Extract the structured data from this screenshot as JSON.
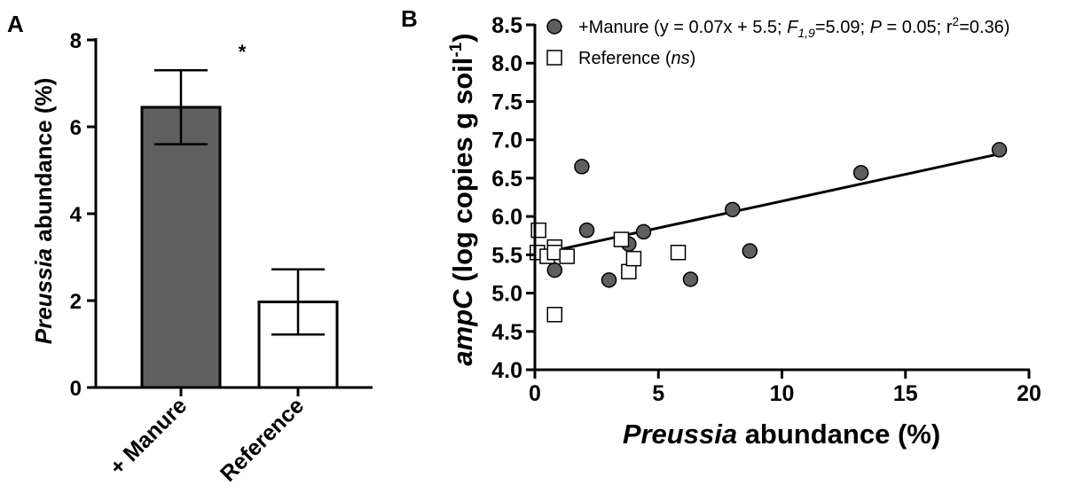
{
  "chart_data": [
    {
      "panel": "A",
      "type": "bar",
      "categories": [
        "+ Manure",
        "Reference"
      ],
      "values": [
        6.45,
        1.97
      ],
      "errors": [
        0.85,
        0.75
      ],
      "colors": [
        "#5f5f5f",
        "#ffffff"
      ],
      "ylabel_italic": "Preussia",
      "ylabel_rest": " abundance (%)",
      "ylim": [
        0,
        8
      ],
      "yticks": [
        "0",
        "2",
        "4",
        "6",
        "8"
      ],
      "annotation": "*"
    },
    {
      "panel": "B",
      "type": "scatter",
      "xlim": [
        0,
        20
      ],
      "ylim": [
        4.0,
        8.5
      ],
      "xticks": [
        "0",
        "5",
        "10",
        "15",
        "20"
      ],
      "yticks": [
        "4.0",
        "4.5",
        "5.0",
        "5.5",
        "6.0",
        "6.5",
        "7.0",
        "7.5",
        "8.0",
        "8.5"
      ],
      "xlabel_italic": "Preussia",
      "xlabel_rest": " abundance (%)",
      "ylabel_italic": "ampC",
      "ylabel_rest": " (log copies g soil",
      "ylabel_sup": "-1",
      "ylabel_close": ")",
      "legend_position": "top-right",
      "series": [
        {
          "name": "+Manure",
          "marker": "circle",
          "color": "#5f5f5f",
          "points": [
            [
              0.8,
              5.3
            ],
            [
              1.9,
              6.65
            ],
            [
              2.1,
              5.82
            ],
            [
              3.0,
              5.17
            ],
            [
              3.8,
              5.64
            ],
            [
              4.4,
              5.8
            ],
            [
              6.3,
              5.18
            ],
            [
              8.0,
              6.09
            ],
            [
              8.7,
              5.55
            ],
            [
              13.2,
              6.57
            ],
            [
              18.8,
              6.87
            ]
          ],
          "fit": {
            "slope": 0.07,
            "intercept": 5.5,
            "x_range": [
              0.5,
              18.8
            ]
          }
        },
        {
          "name": "Reference",
          "marker": "square",
          "color": "#ffffff",
          "points": [
            [
              0.15,
              5.82
            ],
            [
              0.1,
              5.53
            ],
            [
              0.5,
              5.48
            ],
            [
              0.8,
              5.6
            ],
            [
              0.8,
              5.53
            ],
            [
              1.3,
              5.48
            ],
            [
              0.8,
              4.72
            ],
            [
              3.5,
              5.7
            ],
            [
              3.8,
              5.28
            ],
            [
              4.0,
              5.45
            ],
            [
              5.8,
              5.53
            ]
          ]
        }
      ],
      "legend": [
        {
          "marker": "circle",
          "name": "+Manure",
          "stats_open": " (y = 0.07x + 5.5; ",
          "f_letter": "F",
          "f_sub": "1,9",
          "f_value": "=5.09; ",
          "p_letter": "P",
          "p_value": " = 0.05; r",
          "r_sup": "2",
          "r_value": "=0.36)"
        },
        {
          "marker": "square",
          "name": "Reference",
          "stats_open": " (",
          "ns_italic": "ns",
          "stats_close": ")"
        }
      ]
    }
  ],
  "labels": {
    "panel_a": "A",
    "panel_b": "B"
  }
}
